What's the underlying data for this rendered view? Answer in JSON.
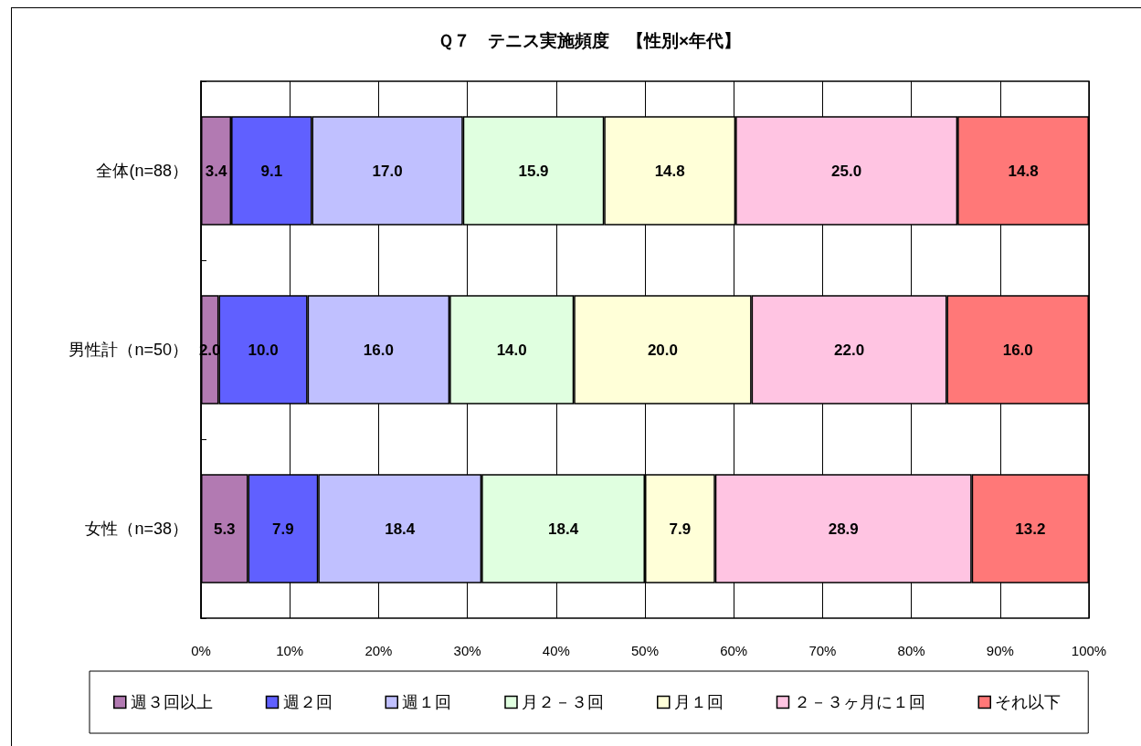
{
  "chart_data": {
    "type": "bar",
    "orientation": "horizontal",
    "stacked": true,
    "title": "Ｑ７　テニス実施頻度　【性別×年代】",
    "categories": [
      "全体(n=88）",
      "男性計（n=50）",
      "女性（n=38）"
    ],
    "series": [
      {
        "name": "週３回以上",
        "color": "#b27ab2",
        "values": [
          3.4,
          2.0,
          5.3
        ],
        "value_labels": [
          "3.4",
          "2.0",
          "5.3"
        ]
      },
      {
        "name": "週２回",
        "color": "#6060ff",
        "values": [
          9.1,
          10.0,
          7.9
        ],
        "value_labels": [
          "9.1",
          "10.0",
          "7.9"
        ]
      },
      {
        "name": "週１回",
        "color": "#c0c0ff",
        "values": [
          17.0,
          16.0,
          18.4
        ],
        "value_labels": [
          "17.0",
          "16.0",
          "18.4"
        ]
      },
      {
        "name": "月２－３回",
        "color": "#e0ffe0",
        "values": [
          15.9,
          14.0,
          18.4
        ],
        "value_labels": [
          "15.9",
          "14.0",
          "18.4"
        ]
      },
      {
        "name": "月１回",
        "color": "#ffffd8",
        "values": [
          14.8,
          20.0,
          7.9
        ],
        "value_labels": [
          "14.8",
          "20.0",
          "7.9"
        ]
      },
      {
        "name": "２－３ヶ月に１回",
        "color": "#ffc4e2",
        "values": [
          25.0,
          22.0,
          28.9
        ],
        "value_labels": [
          "25.0",
          "22.0",
          "28.9"
        ]
      },
      {
        "name": "それ以下",
        "color": "#ff7878",
        "values": [
          14.8,
          16.0,
          13.2
        ],
        "value_labels": [
          "14.8",
          "16.0",
          "13.2"
        ]
      }
    ],
    "xlim": [
      0,
      100
    ],
    "xticks": [
      {
        "value": 0,
        "label": "0%"
      },
      {
        "value": 10,
        "label": "10%"
      },
      {
        "value": 20,
        "label": "20%"
      },
      {
        "value": 30,
        "label": "30%"
      },
      {
        "value": 40,
        "label": "40%"
      },
      {
        "value": 50,
        "label": "50%"
      },
      {
        "value": 60,
        "label": "60%"
      },
      {
        "value": 70,
        "label": "70%"
      },
      {
        "value": 80,
        "label": "80%"
      },
      {
        "value": 90,
        "label": "90%"
      },
      {
        "value": 100,
        "label": "100%"
      }
    ],
    "grid": "x",
    "legend": "bottom"
  }
}
